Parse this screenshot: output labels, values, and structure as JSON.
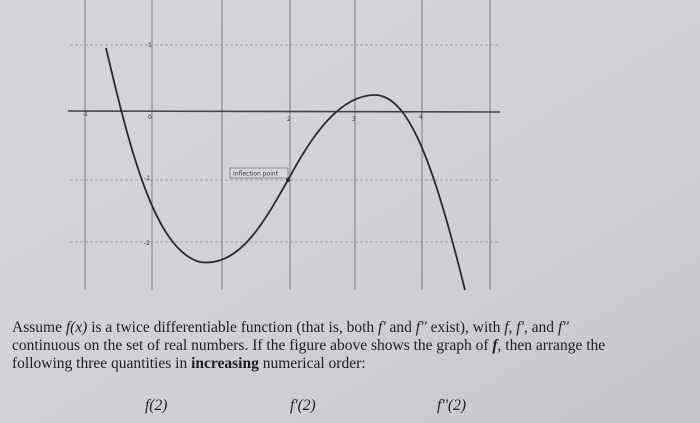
{
  "graph": {
    "x_labels": [
      "-1",
      "0",
      "2",
      "3",
      "4"
    ],
    "y_labels": [
      "1",
      "-1",
      "-2"
    ],
    "annotation": "Inflection point"
  },
  "problem": {
    "lines": [
      [
        "Assume ",
        "f(x)",
        " is a twice differentiable function (that is, both ",
        "f'",
        " and ",
        "f''",
        " exist), with ",
        "f, f'",
        ", and ",
        "f''"
      ],
      [
        "continuous on the set of real numbers.  If the figure above shows the graph of ",
        "f",
        ", then arrange the"
      ],
      [
        "following three quantities in ",
        "increasing",
        " numerical order:"
      ]
    ],
    "quantities": [
      "f(2)",
      "f'(2)",
      "f''(2)"
    ]
  }
}
